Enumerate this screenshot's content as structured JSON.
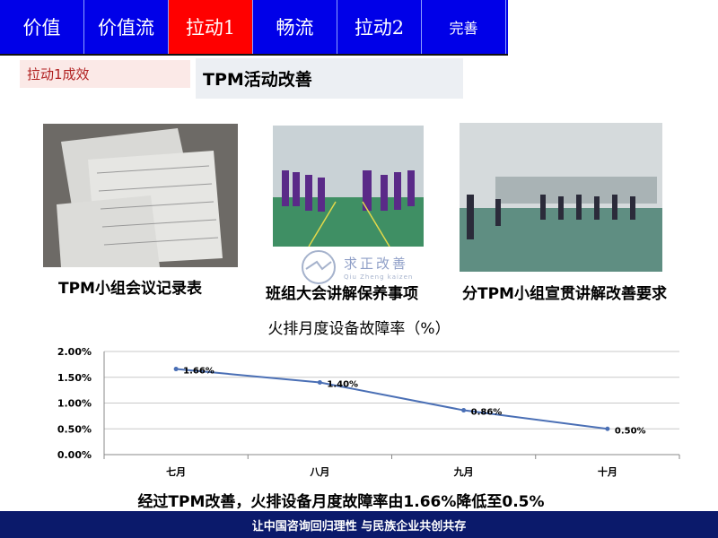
{
  "nav": {
    "tabs": [
      {
        "label": "价值"
      },
      {
        "label": "价值流"
      },
      {
        "label": "拉动1",
        "active": true
      },
      {
        "label": "畅流"
      },
      {
        "label": "拉动2"
      },
      {
        "label": "完善"
      }
    ]
  },
  "section_label": "拉动1成效",
  "page_title": "TPM活动改善",
  "photos": [
    {
      "caption": "TPM小组会议记录表"
    },
    {
      "caption": "班组大会讲解保养事项"
    },
    {
      "caption": "分TPM小组宣贯讲解改善要求"
    }
  ],
  "watermark": {
    "text": "求正改善",
    "subtext": "Qiu Zheng kaizen"
  },
  "chart_data": {
    "type": "line",
    "title": "火排月度设备故障率（%）",
    "categories": [
      "七月",
      "八月",
      "九月",
      "十月"
    ],
    "values": [
      1.66,
      1.4,
      0.86,
      0.5
    ],
    "data_labels": [
      "1.66%",
      "1.40%",
      "0.86%",
      "0.50%"
    ],
    "ylim": [
      0,
      2
    ],
    "yticks": [
      "0.00%",
      "0.50%",
      "1.00%",
      "1.50%",
      "2.00%"
    ],
    "grid": true,
    "color": "#4a6fb5"
  },
  "summary": "经过TPM改善，火排设备月度故障率由1.66%降低至0.5%",
  "footer": "让中国咨询回归理性  与民族企业共创共存",
  "colors": {
    "nav": "#0000e8",
    "nav_active": "#ff0000",
    "footer": "#0b1a6b"
  }
}
